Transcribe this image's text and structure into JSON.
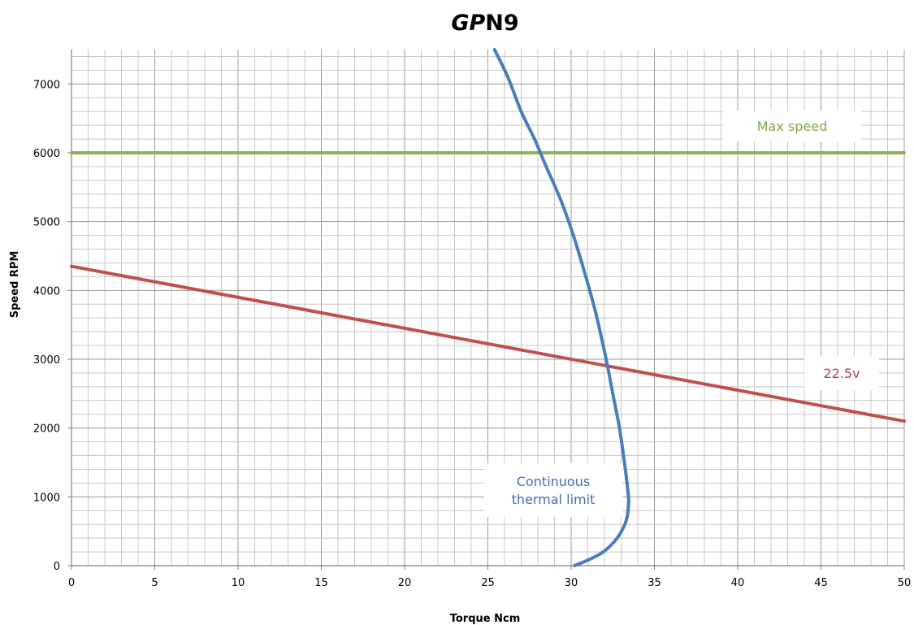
{
  "chart_data": {
    "type": "line",
    "title": {
      "italic": "GP",
      "rest": "N9"
    },
    "xlabel": "Torque Ncm",
    "ylabel": "Speed RPM",
    "xlim": [
      0,
      50
    ],
    "ylim": [
      0,
      7500
    ],
    "x_major_ticks": [
      0,
      5,
      10,
      15,
      20,
      25,
      30,
      35,
      40,
      45,
      50
    ],
    "y_major_ticks": [
      0,
      1000,
      2000,
      3000,
      4000,
      5000,
      6000,
      7000
    ],
    "x_minor_step": 1,
    "y_minor_step": 200,
    "grid": true,
    "legend": "none",
    "series": [
      {
        "label": "Max speed",
        "color": "#8DB255",
        "points": [
          [
            0,
            6000
          ],
          [
            50,
            6000
          ]
        ]
      },
      {
        "label": "22.5v",
        "color": "#C0504D",
        "points": [
          [
            0,
            4350
          ],
          [
            50,
            2100
          ]
        ]
      },
      {
        "label": "Continuous thermal limit",
        "color": "#4A7EBB",
        "points": [
          [
            30.2,
            0
          ],
          [
            31.0,
            80
          ],
          [
            31.8,
            180
          ],
          [
            32.4,
            300
          ],
          [
            32.9,
            450
          ],
          [
            33.3,
            650
          ],
          [
            33.45,
            900
          ],
          [
            33.4,
            1100
          ],
          [
            33.2,
            1500
          ],
          [
            32.9,
            2000
          ],
          [
            32.5,
            2500
          ],
          [
            32.1,
            3000
          ],
          [
            31.5,
            3650
          ],
          [
            31.0,
            4100
          ],
          [
            30.2,
            4750
          ],
          [
            29.4,
            5300
          ],
          [
            28.5,
            5800
          ],
          [
            27.8,
            6200
          ],
          [
            27.0,
            6600
          ],
          [
            26.2,
            7100
          ],
          [
            25.4,
            7500
          ]
        ]
      }
    ]
  }
}
